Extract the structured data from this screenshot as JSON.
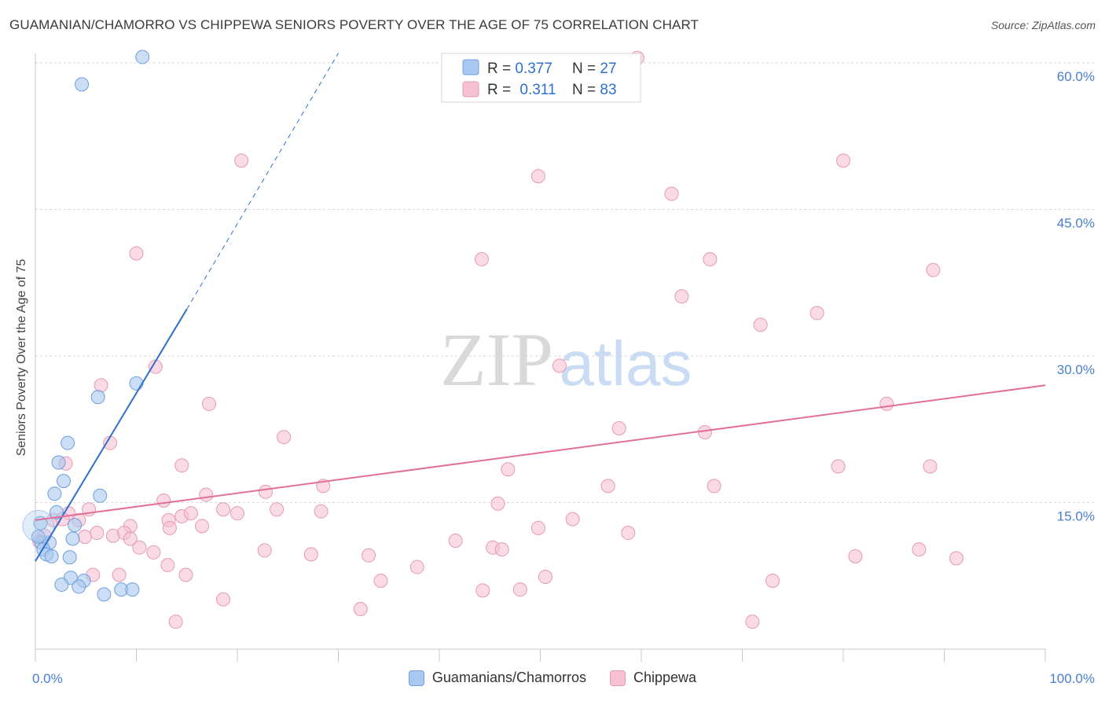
{
  "title": "GUAMANIAN/CHAMORRO VS CHIPPEWA SENIORS POVERTY OVER THE AGE OF 75 CORRELATION CHART",
  "source": "Source: ZipAtlas.com",
  "watermark": {
    "zip": "ZIP",
    "atlas": "atlas"
  },
  "colors": {
    "blue_fill": "#a9c8ef",
    "blue_stroke": "#6f9fdc",
    "blue_line": "#2e6fd0",
    "pink_fill": "#f6c1d2",
    "pink_stroke": "#e59ab3",
    "pink_line": "#e0709a",
    "tick_text": "#4a7fd0",
    "grid": "#d9d9d9"
  },
  "legend": {
    "rows": [
      {
        "r_label": "R = ",
        "r_value": "0.377",
        "n_label": "N = ",
        "n_value": "27"
      },
      {
        "r_label": "R = ",
        "r_value": "0.311",
        "n_label": "N = ",
        "n_value": "83"
      }
    ]
  },
  "bottom_legend": [
    {
      "label": "Guamanians/Chamorros"
    },
    {
      "label": "Chippewa"
    }
  ],
  "chart_data": {
    "type": "scatter",
    "title": "GUAMANIAN/CHAMORRO VS CHIPPEWA SENIORS POVERTY OVER THE AGE OF 75 CORRELATION CHART",
    "xlabel": "",
    "ylabel": "Seniors Poverty Over the Age of 75",
    "xlim": [
      0,
      100
    ],
    "ylim": [
      0,
      60
    ],
    "x_ticks": [
      {
        "value": 0,
        "label": "0.0%"
      },
      {
        "value": 100,
        "label": "100.0%"
      }
    ],
    "y_ticks": [
      {
        "value": 15,
        "label": "15.0%"
      },
      {
        "value": 30,
        "label": "30.0%"
      },
      {
        "value": 45,
        "label": "45.0%"
      },
      {
        "value": 60,
        "label": "60.0%"
      }
    ],
    "series": [
      {
        "name": "Guamanians/Chamorros",
        "R": 0.377,
        "N": 27,
        "trend": {
          "x0": 0,
          "y0": 9.0,
          "x1": 15,
          "y1": 34.8,
          "dash_to_x": 30,
          "dash_to_y": 61.0
        },
        "points": [
          [
            10.6,
            60.6
          ],
          [
            4.6,
            57.8
          ],
          [
            10.0,
            27.2
          ],
          [
            6.2,
            25.8
          ],
          [
            3.2,
            21.1
          ],
          [
            2.3,
            19.1
          ],
          [
            2.8,
            17.2
          ],
          [
            1.9,
            15.9
          ],
          [
            6.4,
            15.7
          ],
          [
            2.1,
            14.0
          ],
          [
            0.5,
            12.9
          ],
          [
            3.9,
            12.7
          ],
          [
            0.6,
            10.9
          ],
          [
            1.4,
            10.9
          ],
          [
            3.7,
            11.3
          ],
          [
            0.8,
            10.2
          ],
          [
            1.1,
            9.7
          ],
          [
            1.6,
            9.5
          ],
          [
            3.4,
            9.4
          ],
          [
            3.5,
            7.3
          ],
          [
            4.8,
            7.0
          ],
          [
            2.6,
            6.6
          ],
          [
            4.3,
            6.4
          ],
          [
            6.8,
            5.6
          ],
          [
            8.5,
            6.1
          ],
          [
            9.6,
            6.1
          ],
          [
            0.3,
            11.5
          ]
        ]
      },
      {
        "name": "Chippewa",
        "R": 0.311,
        "N": 83,
        "trend": {
          "x0": 0,
          "y0": 13.2,
          "x1": 100,
          "y1": 27.0
        },
        "points": [
          [
            59.6,
            60.5
          ],
          [
            20.4,
            50.0
          ],
          [
            49.8,
            48.4
          ],
          [
            80.0,
            50.0
          ],
          [
            63.0,
            46.6
          ],
          [
            10.0,
            40.5
          ],
          [
            44.2,
            39.9
          ],
          [
            66.8,
            39.9
          ],
          [
            88.9,
            38.8
          ],
          [
            64.0,
            36.1
          ],
          [
            77.4,
            34.4
          ],
          [
            71.8,
            33.2
          ],
          [
            11.9,
            28.9
          ],
          [
            51.9,
            29.0
          ],
          [
            6.5,
            27.0
          ],
          [
            17.2,
            25.1
          ],
          [
            84.3,
            25.1
          ],
          [
            57.8,
            22.6
          ],
          [
            66.3,
            22.2
          ],
          [
            24.6,
            21.7
          ],
          [
            7.4,
            21.1
          ],
          [
            3.0,
            19.0
          ],
          [
            14.5,
            18.8
          ],
          [
            46.8,
            18.4
          ],
          [
            79.5,
            18.7
          ],
          [
            88.6,
            18.7
          ],
          [
            28.5,
            16.7
          ],
          [
            56.7,
            16.7
          ],
          [
            67.2,
            16.7
          ],
          [
            22.8,
            16.1
          ],
          [
            16.9,
            15.8
          ],
          [
            12.7,
            15.2
          ],
          [
            45.8,
            14.9
          ],
          [
            5.3,
            14.3
          ],
          [
            14.5,
            13.6
          ],
          [
            18.6,
            14.3
          ],
          [
            23.9,
            14.3
          ],
          [
            3.3,
            13.9
          ],
          [
            15.4,
            13.9
          ],
          [
            28.3,
            14.1
          ],
          [
            20.0,
            13.9
          ],
          [
            9.4,
            12.6
          ],
          [
            4.3,
            13.2
          ],
          [
            1.8,
            13.2
          ],
          [
            2.7,
            13.3
          ],
          [
            13.2,
            13.2
          ],
          [
            0.9,
            11.6
          ],
          [
            0.4,
            11.0
          ],
          [
            16.5,
            12.6
          ],
          [
            49.8,
            12.4
          ],
          [
            53.2,
            13.3
          ],
          [
            58.7,
            11.9
          ],
          [
            6.1,
            11.9
          ],
          [
            7.7,
            11.6
          ],
          [
            8.8,
            11.9
          ],
          [
            4.9,
            11.5
          ],
          [
            13.3,
            12.4
          ],
          [
            41.6,
            11.1
          ],
          [
            9.4,
            11.3
          ],
          [
            45.3,
            10.4
          ],
          [
            46.2,
            10.2
          ],
          [
            10.3,
            10.4
          ],
          [
            11.7,
            9.9
          ],
          [
            22.7,
            10.1
          ],
          [
            27.3,
            9.7
          ],
          [
            33.0,
            9.6
          ],
          [
            81.2,
            9.5
          ],
          [
            91.2,
            9.3
          ],
          [
            87.5,
            10.2
          ],
          [
            13.1,
            8.6
          ],
          [
            37.8,
            8.4
          ],
          [
            5.7,
            7.6
          ],
          [
            8.3,
            7.6
          ],
          [
            14.9,
            7.6
          ],
          [
            34.2,
            7.0
          ],
          [
            50.5,
            7.4
          ],
          [
            73.0,
            7.0
          ],
          [
            44.3,
            6.0
          ],
          [
            48.0,
            6.1
          ],
          [
            18.6,
            5.1
          ],
          [
            32.2,
            4.1
          ],
          [
            13.9,
            2.8
          ],
          [
            71.0,
            2.8
          ]
        ]
      }
    ]
  }
}
